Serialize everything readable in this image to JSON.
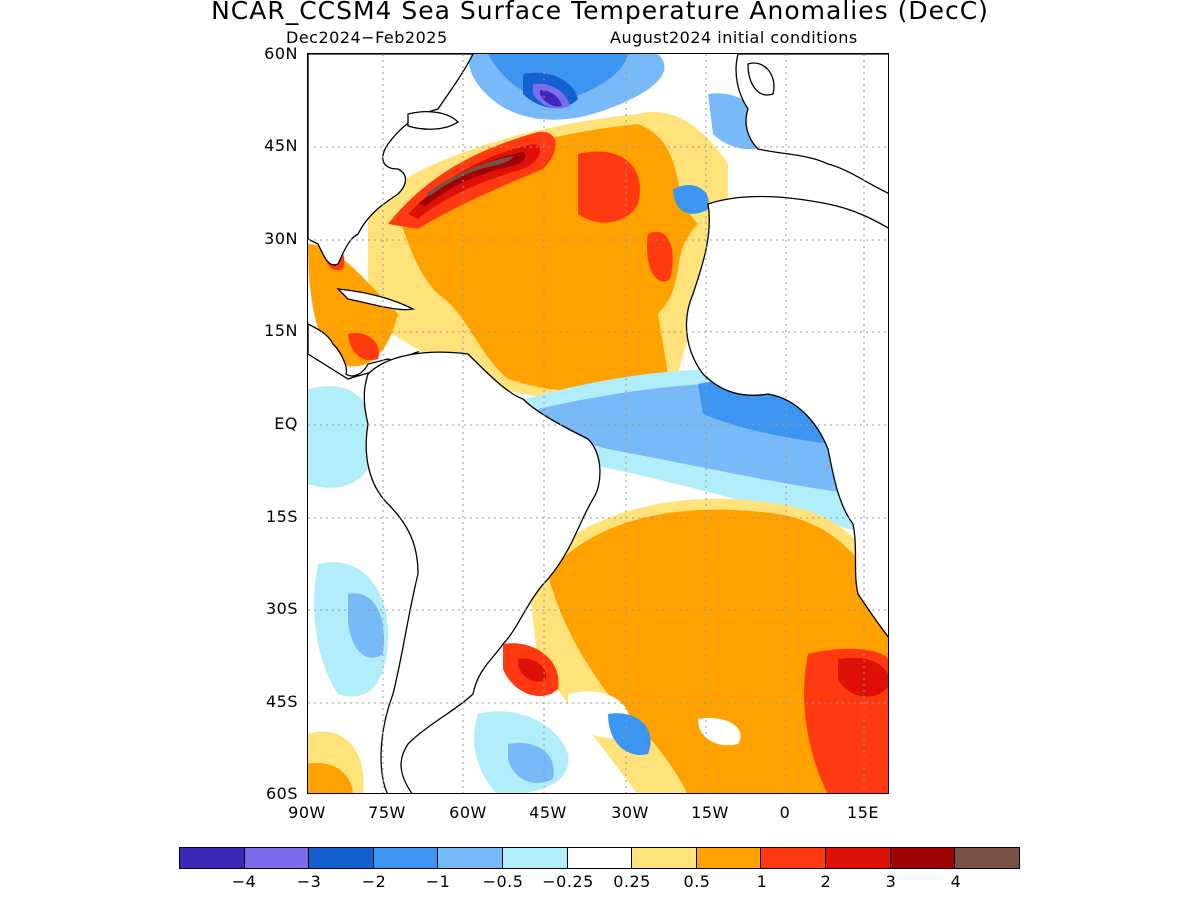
{
  "header": {
    "title": "NCAR_CCSM4 Sea Surface Temperature Anomalies (DecC)",
    "period": "Dec2024−Feb2025",
    "init": "August2024 initial conditions"
  },
  "axes": {
    "lat_labels": [
      "60N",
      "45N",
      "30N",
      "15N",
      "EQ",
      "15S",
      "30S",
      "45S",
      "60S"
    ],
    "lon_labels": [
      "90W",
      "75W",
      "60W",
      "45W",
      "30W",
      "15W",
      "0",
      "15E"
    ]
  },
  "colorbar": {
    "colors": [
      "#3b27b8",
      "#7c6bea",
      "#1560d0",
      "#3c95f0",
      "#78b9f7",
      "#b2eef9",
      "#ffffff",
      "#ffe37a",
      "#ffa200",
      "#ff3a10",
      "#de1108",
      "#a10305",
      "#7a4f44"
    ],
    "labels": [
      "−4",
      "−3",
      "−2",
      "−1",
      "−0.5",
      "−0.25",
      "0.25",
      "0.5",
      "1",
      "2",
      "3",
      "4"
    ]
  },
  "map": {
    "lon_range": [
      -90,
      17
    ],
    "lat_range": [
      -60,
      60
    ],
    "variable": "Sea Surface Temperature Anomalies",
    "units": "DecC"
  }
}
